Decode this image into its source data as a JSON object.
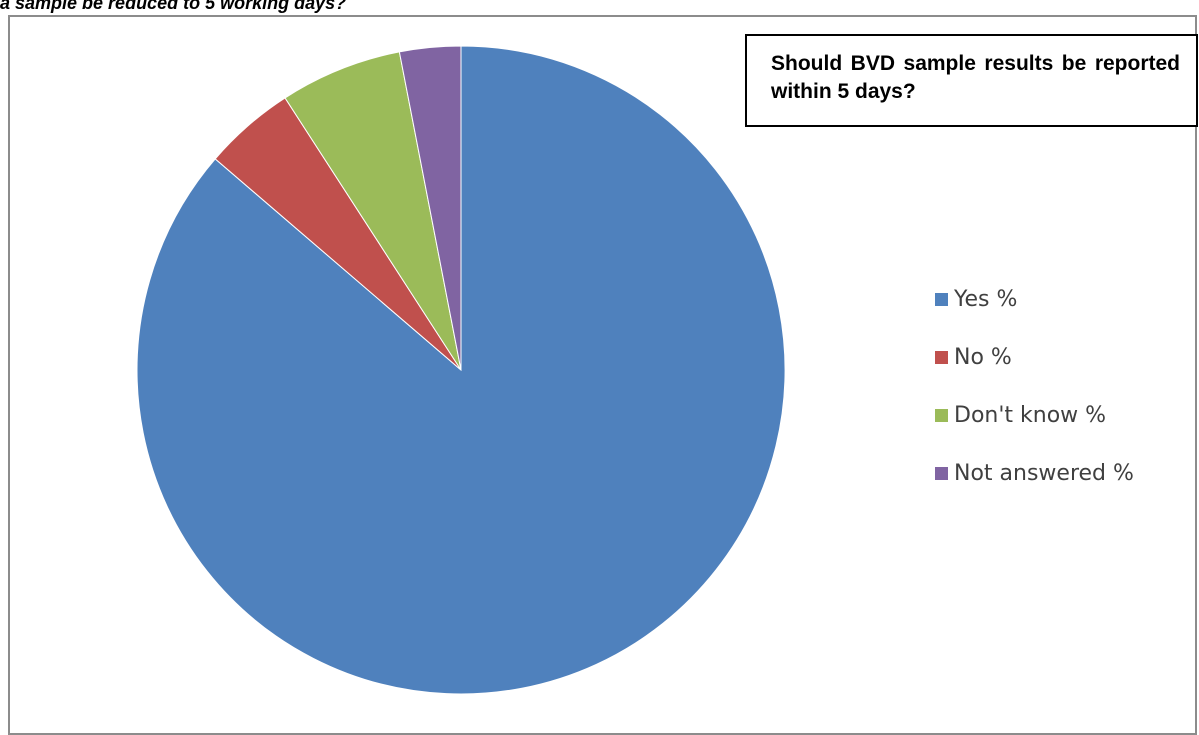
{
  "header": {
    "caption": "a sample be reduced to 5 working days?"
  },
  "chart_data": {
    "type": "pie",
    "title": "Should BVD sample results be reported within 5 days?",
    "categories": [
      "Yes %",
      "No %",
      "Don't know %",
      "Not answered %"
    ],
    "values": [
      85.0,
      4.5,
      6.0,
      3.0
    ],
    "colors": [
      "#4f81bd",
      "#c0504d",
      "#9bbb59",
      "#8064a2"
    ],
    "legend_position": "right",
    "start_angle": "12 o'clock",
    "direction": "clockwise"
  }
}
